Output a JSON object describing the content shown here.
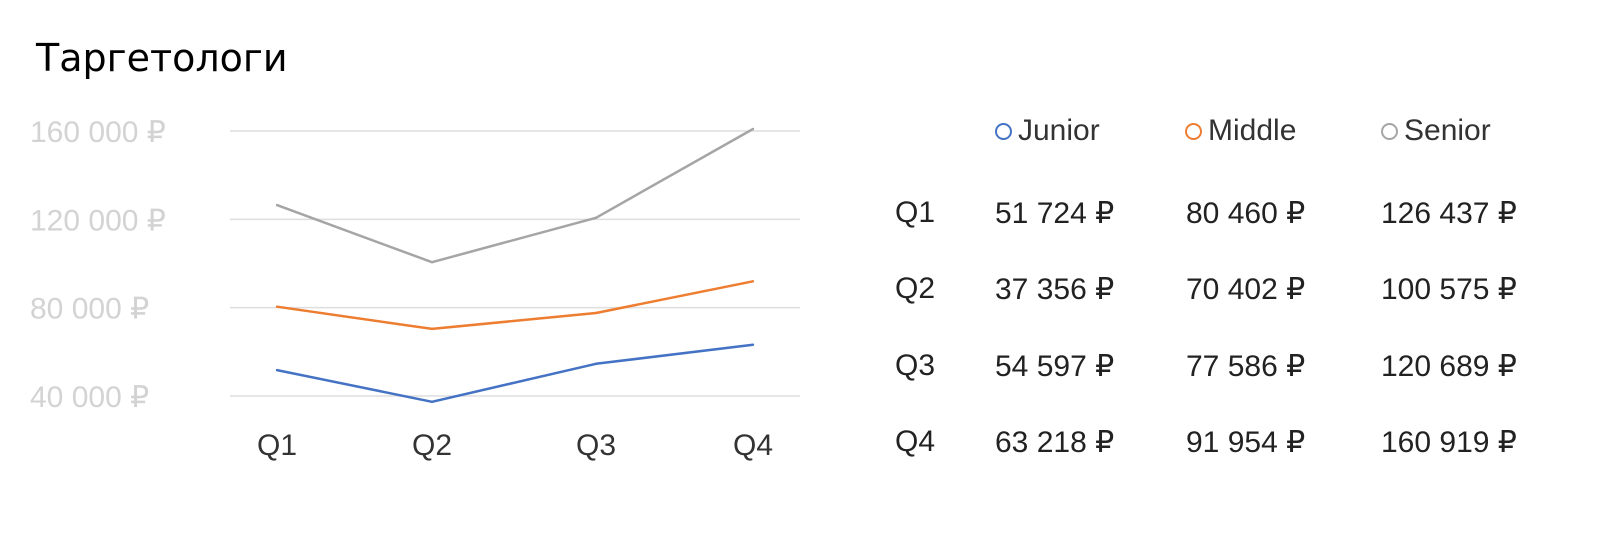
{
  "title": "Таргетологи",
  "currency": "₽",
  "chart_data": {
    "type": "line",
    "title": "Таргетологи",
    "categories": [
      "Q1",
      "Q2",
      "Q3",
      "Q4"
    ],
    "ylim": [
      40000,
      160000
    ],
    "yticks": [
      40000,
      80000,
      120000,
      160000
    ],
    "ytick_labels": [
      "40 000 ₽",
      "80 000 ₽",
      "120 000 ₽",
      "160 000 ₽"
    ],
    "grid": true,
    "legend_position": "top-right",
    "series": [
      {
        "name": "Junior",
        "color": "#4472c4",
        "values": [
          51724,
          37356,
          54597,
          63218
        ]
      },
      {
        "name": "Middle",
        "color": "#ed7d31",
        "values": [
          80460,
          70402,
          77586,
          91954
        ]
      },
      {
        "name": "Senior",
        "color": "#a5a5a5",
        "values": [
          126437,
          100575,
          120689,
          160919
        ]
      }
    ]
  },
  "table": {
    "rows": [
      {
        "label": "Q1",
        "cells": [
          "51 724 ₽",
          "80 460 ₽",
          "126 437 ₽"
        ]
      },
      {
        "label": "Q2",
        "cells": [
          "37 356 ₽",
          "70 402 ₽",
          "100 575 ₽"
        ]
      },
      {
        "label": "Q3",
        "cells": [
          "54 597 ₽",
          "77 586 ₽",
          "120 689 ₽"
        ]
      },
      {
        "label": "Q4",
        "cells": [
          "63 218 ₽",
          "91 954 ₽",
          "160 919 ₽"
        ]
      }
    ]
  }
}
